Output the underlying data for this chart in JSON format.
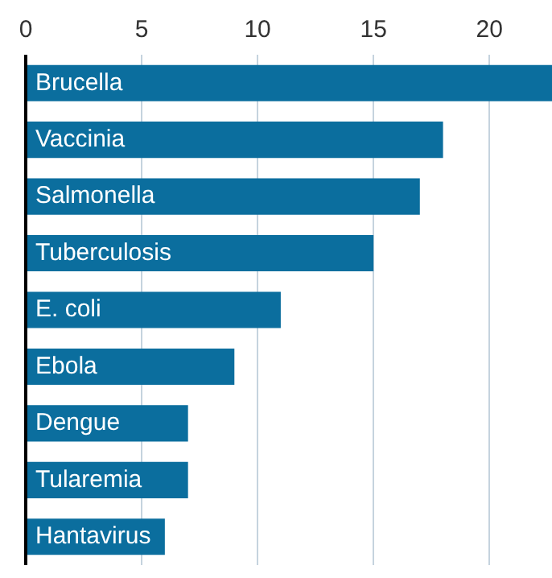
{
  "chart_data": {
    "type": "bar",
    "orientation": "horizontal",
    "categories": [
      "Brucella",
      "Vaccinia",
      "Salmonella",
      "Tuberculosis",
      "E. coli",
      "Ebola",
      "Dengue",
      "Tularemia",
      "Hantavirus"
    ],
    "values": [
      22.7,
      18,
      17,
      15,
      11,
      9,
      7,
      7,
      6
    ],
    "color": "#0b6e9e",
    "xlim": [
      0,
      22.7
    ],
    "xticks": [
      0,
      5,
      10,
      15,
      20
    ],
    "grid": "x"
  }
}
